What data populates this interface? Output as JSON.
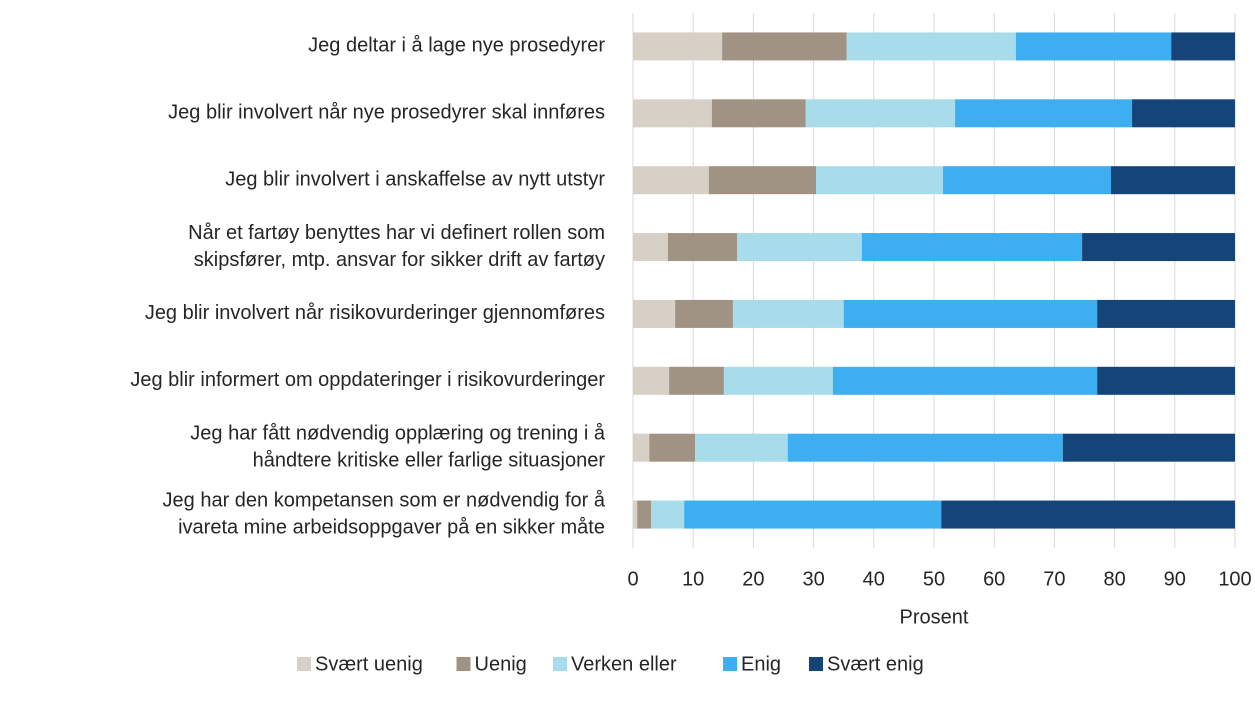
{
  "chart_data": {
    "type": "stacked_barh",
    "x_label": "Prosent",
    "categories": [
      [
        "Jeg deltar i å lage nye prosedyrer"
      ],
      [
        "Jeg blir involvert når nye prosedyrer skal innføres"
      ],
      [
        "Jeg blir involvert i anskaffelse av nytt utstyr"
      ],
      [
        "Når et fartøy benyttes har vi definert rollen som",
        "skipsfører, mtp. ansvar for sikker drift av fartøy"
      ],
      [
        "Jeg blir involvert når risikovurderinger gjennomføres"
      ],
      [
        "Jeg blir informert om oppdateringer i risikovurderinger"
      ],
      [
        "Jeg har fått nødvendig opplæring og trening i å",
        "håndtere kritiske eller farlige situasjoner"
      ],
      [
        "Jeg har den kompetansen som er nødvendig for å",
        "ivareta mine arbeidsoppgaver på en sikker måte"
      ]
    ],
    "series": [
      {
        "name": "Svært uenig",
        "color": "#d6d0c6",
        "values": [
          14.8,
          13.1,
          12.6,
          5.8,
          7.0,
          6.0,
          2.7,
          0.7
        ]
      },
      {
        "name": "Uenig",
        "color": "#a09384",
        "values": [
          20.7,
          15.6,
          17.8,
          11.5,
          9.6,
          9.1,
          7.6,
          2.3
        ]
      },
      {
        "name": "Verken eller",
        "color": "#a8dcea",
        "values": [
          28.1,
          24.8,
          21.1,
          20.7,
          18.4,
          18.1,
          15.4,
          5.5
        ]
      },
      {
        "name": "Enig",
        "color": "#3daef0",
        "values": [
          25.8,
          29.4,
          27.9,
          36.6,
          42.1,
          43.9,
          45.7,
          42.7
        ]
      },
      {
        "name": "Svært enig",
        "color": "#154479",
        "values": [
          10.6,
          17.1,
          20.6,
          25.4,
          22.9,
          22.9,
          28.6,
          48.8
        ]
      }
    ],
    "xlim": [
      0,
      100
    ],
    "xticks": [
      0,
      10,
      20,
      30,
      40,
      50,
      60,
      70,
      80,
      90,
      100
    ],
    "grid": true,
    "legend": "bottom"
  }
}
